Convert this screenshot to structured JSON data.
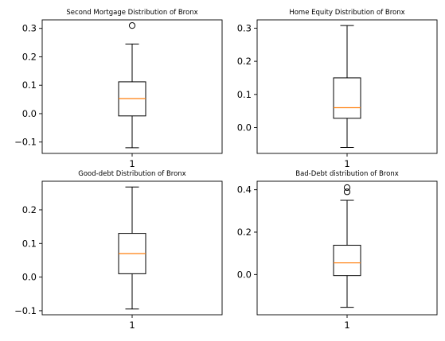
{
  "chart_data": [
    {
      "type": "box",
      "title": "Second Mortgage Distribution of Bronx",
      "categories": [
        "1"
      ],
      "ylim": [
        -0.14,
        0.33
      ],
      "yticks": [
        -0.1,
        0.0,
        0.1,
        0.2,
        0.3
      ],
      "ytick_labels": [
        "−0.1",
        "0.0",
        "0.1",
        "0.2",
        "0.3"
      ],
      "box": {
        "whisker_low": -0.12,
        "q1": -0.008,
        "median": 0.053,
        "q3": 0.112,
        "whisker_high": 0.245,
        "outliers": [
          0.31
        ]
      }
    },
    {
      "type": "box",
      "title": "Home Equity Distribution of Bronx",
      "categories": [
        "1"
      ],
      "ylim": [
        -0.078,
        0.325
      ],
      "yticks": [
        0.0,
        0.1,
        0.2,
        0.3
      ],
      "ytick_labels": [
        "0.0",
        "0.1",
        "0.2",
        "0.3"
      ],
      "box": {
        "whisker_low": -0.06,
        "q1": 0.028,
        "median": 0.06,
        "q3": 0.15,
        "whisker_high": 0.308,
        "outliers": []
      }
    },
    {
      "type": "box",
      "title": "Good-debt Distribution of Bronx",
      "categories": [
        "1"
      ],
      "ylim": [
        -0.112,
        0.285
      ],
      "yticks": [
        -0.1,
        0.0,
        0.1,
        0.2
      ],
      "ytick_labels": [
        "−0.1",
        "0.0",
        "0.1",
        "0.2"
      ],
      "box": {
        "whisker_low": -0.095,
        "q1": 0.01,
        "median": 0.07,
        "q3": 0.13,
        "whisker_high": 0.268,
        "outliers": []
      }
    },
    {
      "type": "box",
      "title": "Bad-Debt distribution of Bronx",
      "categories": [
        "1"
      ],
      "ylim": [
        -0.19,
        0.44
      ],
      "yticks": [
        0.0,
        0.2,
        0.4
      ],
      "ytick_labels": [
        "0.0",
        "0.2",
        "0.4"
      ],
      "box": {
        "whisker_low": -0.155,
        "q1": -0.005,
        "median": 0.055,
        "q3": 0.138,
        "whisker_high": 0.35,
        "outliers": [
          0.39,
          0.41
        ]
      }
    }
  ],
  "colors": {
    "median": "#ff7f0e",
    "box": "#000000",
    "axes": "#000000"
  }
}
